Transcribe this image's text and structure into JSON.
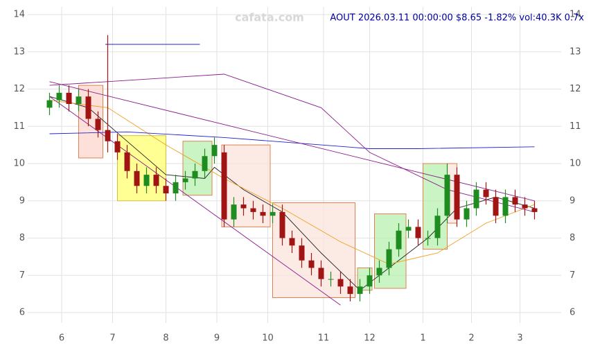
{
  "chart_data": {
    "type": "candlestick",
    "title": "AOUT 2026.03.11 00:00:00 $8.65 -1.82% vol:40.3K 0.7x",
    "watermark": "cafata.com",
    "x": [
      9,
      13,
      17,
      21,
      25,
      29,
      33,
      37,
      41,
      45,
      49,
      53,
      57,
      61,
      65,
      69,
      73,
      77,
      81,
      85,
      89,
      93,
      97,
      101,
      105,
      109,
      113,
      117,
      121,
      125,
      129,
      133,
      137,
      141,
      145,
      149,
      153,
      157,
      161,
      165,
      169,
      173,
      177,
      181,
      185,
      189,
      193,
      197,
      201,
      205,
      209
    ],
    "open": [
      11.5,
      11.7,
      11.9,
      11.6,
      11.8,
      11.2,
      10.9,
      10.6,
      10.3,
      9.8,
      9.4,
      9.7,
      9.4,
      9.2,
      9.5,
      9.6,
      9.8,
      10.2,
      10.3,
      8.5,
      8.9,
      8.8,
      8.7,
      8.6,
      8.7,
      8.0,
      7.8,
      7.4,
      7.2,
      6.9,
      6.9,
      6.7,
      6.5,
      6.7,
      7.0,
      7.2,
      7.7,
      8.2,
      8.3,
      8.0,
      8.0,
      8.6,
      9.7,
      8.5,
      8.8,
      9.3,
      9.1,
      8.6,
      9.1,
      8.9,
      8.8
    ],
    "high": [
      11.9,
      12.1,
      12.1,
      12.0,
      12.0,
      11.4,
      13.45,
      10.8,
      10.5,
      10.0,
      9.9,
      9.9,
      9.6,
      9.7,
      9.8,
      10.0,
      10.4,
      10.7,
      10.5,
      9.1,
      9.1,
      9.0,
      8.9,
      8.9,
      8.9,
      8.2,
      8.0,
      7.6,
      7.4,
      7.1,
      7.1,
      6.9,
      6.9,
      7.2,
      7.4,
      7.9,
      8.4,
      8.5,
      8.5,
      8.2,
      8.8,
      10.0,
      9.9,
      9.0,
      9.5,
      9.5,
      9.3,
      9.3,
      9.3,
      9.1,
      9.0
    ],
    "low": [
      11.3,
      11.5,
      11.4,
      11.4,
      11.0,
      10.7,
      10.3,
      10.1,
      9.6,
      9.2,
      9.2,
      9.2,
      9.0,
      9.0,
      9.3,
      9.4,
      9.6,
      10.0,
      8.3,
      8.3,
      8.6,
      8.5,
      8.4,
      8.4,
      7.8,
      7.6,
      7.2,
      7.0,
      6.7,
      6.7,
      6.5,
      6.3,
      6.3,
      6.5,
      6.8,
      7.0,
      7.5,
      8.0,
      7.8,
      7.8,
      7.8,
      8.4,
      8.3,
      8.3,
      8.6,
      8.9,
      8.4,
      8.4,
      8.7,
      8.6,
      8.5
    ],
    "close": [
      11.7,
      11.9,
      11.6,
      11.8,
      11.2,
      10.9,
      10.6,
      10.3,
      9.8,
      9.4,
      9.7,
      9.4,
      9.2,
      9.5,
      9.6,
      9.8,
      10.2,
      10.5,
      8.5,
      8.9,
      8.8,
      8.7,
      8.6,
      8.7,
      8.0,
      7.8,
      7.4,
      7.2,
      6.9,
      6.9,
      6.7,
      6.5,
      6.7,
      7.0,
      7.2,
      7.7,
      8.2,
      8.3,
      8.0,
      8.0,
      8.6,
      9.7,
      8.5,
      8.8,
      9.3,
      9.1,
      8.6,
      9.1,
      8.9,
      8.8,
      8.7
    ],
    "up_color": "#1e8c1e",
    "down_color": "#a01414",
    "lines": [
      {
        "color": "#222222",
        "x": [
          9,
          25,
          41,
          57,
          73,
          77,
          89,
          105,
          121,
          137,
          149,
          165,
          177,
          193,
          209
        ],
        "values": [
          11.8,
          11.5,
          10.6,
          9.7,
          9.6,
          9.9,
          9.3,
          8.7,
          7.6,
          6.6,
          7.2,
          8.0,
          8.8,
          9.1,
          8.8
        ]
      },
      {
        "color": "#f0a020",
        "x": [
          9,
          33,
          57,
          81,
          105,
          129,
          149,
          169,
          189,
          209
        ],
        "values": [
          11.7,
          11.5,
          10.5,
          9.6,
          8.8,
          7.9,
          7.3,
          7.6,
          8.4,
          8.9
        ]
      },
      {
        "color": "#2020d0",
        "x": [
          9,
          41,
          81,
          121,
          141,
          161,
          209
        ],
        "values": [
          10.8,
          10.85,
          10.7,
          10.5,
          10.4,
          10.4,
          10.45
        ]
      },
      {
        "color": "#8a1a8a",
        "x": [
          9,
          57,
          81,
          121,
          141,
          173,
          209
        ],
        "values": [
          12.1,
          12.3,
          12.4,
          11.5,
          10.3,
          9.3,
          8.7
        ]
      },
      {
        "color": "#8a1a8a",
        "x": [
          9,
          209
        ],
        "values": [
          12.2,
          9.0
        ]
      },
      {
        "color": "#8a1a8a",
        "x": [
          9,
          129
        ],
        "values": [
          11.8,
          6.2
        ]
      },
      {
        "color": "#2020d0",
        "x": [
          32,
          71
        ],
        "values": [
          13.2,
          13.2
        ]
      }
    ],
    "boxes": [
      {
        "x0": 21,
        "x1": 31,
        "y0": 10.15,
        "y1": 12.1,
        "fill": "#fbd5cc",
        "stroke": "#e08050"
      },
      {
        "x0": 37,
        "x1": 57,
        "y0": 9.0,
        "y1": 10.75,
        "fill": "#ffff70",
        "stroke": "#d0c040"
      },
      {
        "x0": 64,
        "x1": 76,
        "y0": 9.15,
        "y1": 10.6,
        "fill": "#b8f0b0",
        "stroke": "#e08050"
      },
      {
        "x0": 80,
        "x1": 100,
        "y0": 8.3,
        "y1": 10.5,
        "fill": "#fbe3dc",
        "stroke": "#e08050"
      },
      {
        "x0": 101,
        "x1": 135,
        "y0": 6.4,
        "y1": 8.95,
        "fill": "#fbe3dc",
        "stroke": "#e08050"
      },
      {
        "x0": 136,
        "x1": 142,
        "y0": 6.6,
        "y1": 7.2,
        "fill": "#b8f0b0",
        "stroke": "#e08050"
      },
      {
        "x0": 143,
        "x1": 156,
        "y0": 6.65,
        "y1": 8.65,
        "fill": "#b8f0b0",
        "stroke": "#e08050"
      },
      {
        "x0": 163,
        "x1": 173,
        "y0": 7.7,
        "y1": 10.0,
        "fill": "#b8f0b0",
        "stroke": "#e08050"
      },
      {
        "x0": 173,
        "x1": 177,
        "y0": 8.4,
        "y1": 10.0,
        "fill": "#fbe3dc",
        "stroke": "#e08050"
      }
    ],
    "xlim": [
      0,
      220
    ],
    "xticks": [
      {
        "value": 14,
        "label": "6"
      },
      {
        "value": 35,
        "label": "7"
      },
      {
        "value": 57,
        "label": "8"
      },
      {
        "value": 78,
        "label": "9"
      },
      {
        "value": 99,
        "label": "10"
      },
      {
        "value": 122,
        "label": "11"
      },
      {
        "value": 141,
        "label": "12"
      },
      {
        "value": 163,
        "label": "1"
      },
      {
        "value": 183,
        "label": "2"
      },
      {
        "value": 203,
        "label": "3"
      }
    ],
    "ylim": [
      6,
      14
    ],
    "yticks": [
      6,
      7,
      8,
      9,
      10,
      11,
      12,
      13,
      14
    ],
    "grid": true
  }
}
